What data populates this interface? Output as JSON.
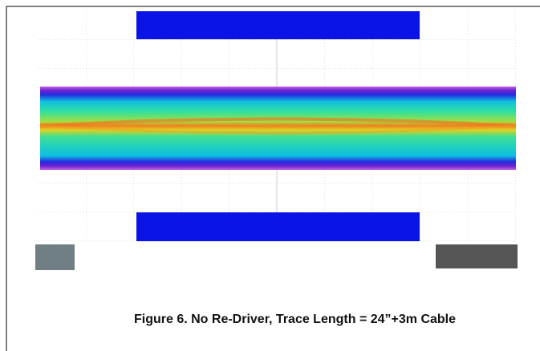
{
  "figure": {
    "caption": "Figure 6. No Re-Driver, Trace Length = 24”+3m Cable"
  }
}
